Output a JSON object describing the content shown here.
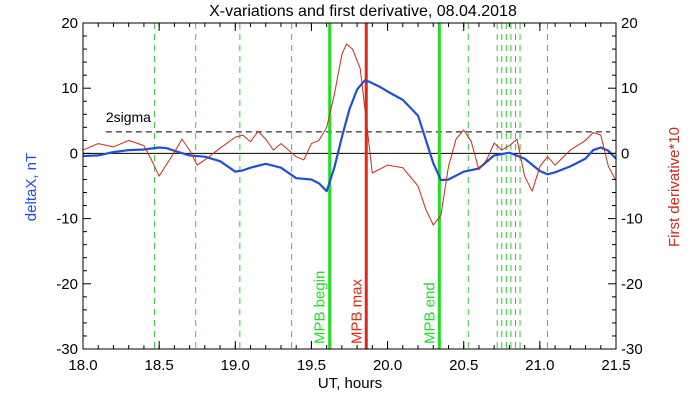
{
  "chart_data": {
    "type": "line",
    "title": "X-variations and first derivative, 08.04.2018",
    "xlabel": "UT, hours",
    "ylabel_left": "deltaX, nT",
    "ylabel_right": "First derivative*10",
    "xlim": [
      18.0,
      21.5
    ],
    "ylim": [
      -30,
      20
    ],
    "x_ticks": [
      "18.0",
      "18.5",
      "19.0",
      "19.5",
      "20.0",
      "20.5",
      "21.0",
      "21.5"
    ],
    "y_ticks_left": [
      "20",
      "10",
      "0",
      "-10",
      "-20",
      "-30"
    ],
    "y_ticks_right": [
      "20",
      "10",
      "0",
      "-10",
      "-20",
      "-30"
    ],
    "threshold": {
      "label": "2sigma",
      "value": 3.3
    },
    "zero_line": 0,
    "series": [
      {
        "color": "#1f4fd6",
        "axis": "left",
        "x": [
          18.0,
          18.1,
          18.2,
          18.3,
          18.4,
          18.5,
          18.55,
          18.6,
          18.7,
          18.8,
          18.9,
          19.0,
          19.05,
          19.1,
          19.2,
          19.3,
          19.4,
          19.5,
          19.55,
          19.6,
          19.65,
          19.7,
          19.75,
          19.8,
          19.85,
          19.88,
          19.95,
          20.0,
          20.1,
          20.2,
          20.25,
          20.3,
          20.35,
          20.4,
          20.5,
          20.6,
          20.7,
          20.8,
          20.9,
          21.0,
          21.05,
          21.1,
          21.2,
          21.3,
          21.35,
          21.4,
          21.45,
          21.5
        ],
        "y": [
          -0.4,
          -0.3,
          0.2,
          0.5,
          0.6,
          0.9,
          0.8,
          0.4,
          -0.3,
          -0.5,
          -1.2,
          -2.8,
          -2.6,
          -2.2,
          -1.6,
          -2.2,
          -3.8,
          -4.0,
          -4.6,
          -5.8,
          -2.2,
          2.5,
          6.8,
          9.8,
          11.2,
          11.0,
          10.2,
          9.5,
          8.2,
          5.8,
          2.2,
          -1.5,
          -4.1,
          -4.0,
          -2.8,
          -2.3,
          -0.3,
          0.1,
          -0.8,
          -2.7,
          -3.2,
          -2.9,
          -2.0,
          -0.8,
          0.5,
          0.9,
          0.4,
          -0.8
        ]
      },
      {
        "color": "#cc2a18",
        "axis": "right",
        "x": [
          18.0,
          18.1,
          18.2,
          18.3,
          18.4,
          18.45,
          18.5,
          18.6,
          18.65,
          18.7,
          18.75,
          18.8,
          18.9,
          19.0,
          19.05,
          19.1,
          19.15,
          19.2,
          19.25,
          19.3,
          19.4,
          19.45,
          19.5,
          19.55,
          19.6,
          19.65,
          19.7,
          19.73,
          19.77,
          19.82,
          19.86,
          19.9,
          20.0,
          20.1,
          20.2,
          20.25,
          20.3,
          20.35,
          20.4,
          20.45,
          20.5,
          20.55,
          20.6,
          20.65,
          20.7,
          20.75,
          20.8,
          20.85,
          20.9,
          20.95,
          21.0,
          21.05,
          21.1,
          21.2,
          21.3,
          21.35,
          21.4,
          21.45,
          21.5
        ],
        "y": [
          0.5,
          1.5,
          1.0,
          2.0,
          1.2,
          -1.0,
          -3.5,
          0.2,
          2.2,
          0.5,
          -1.8,
          -1.0,
          0.8,
          2.5,
          2.8,
          1.8,
          3.4,
          2.2,
          0.5,
          1.5,
          -0.5,
          -1.0,
          1.5,
          2.0,
          4.0,
          9.0,
          15.2,
          16.8,
          16.0,
          13.0,
          5.0,
          -3.0,
          -1.8,
          -2.2,
          -5.0,
          -8.5,
          -11.0,
          -9.5,
          -2.0,
          2.2,
          3.6,
          1.8,
          -2.5,
          -1.0,
          1.6,
          0.5,
          1.2,
          2.2,
          -3.5,
          -5.8,
          -2.0,
          -0.5,
          -1.8,
          0.5,
          2.0,
          3.2,
          2.8,
          -2.0,
          -4.2
        ]
      }
    ],
    "event_lines": [
      {
        "x": 19.62,
        "color": "#22dd22",
        "label": "MPB begin"
      },
      {
        "x": 19.86,
        "color": "#dd2a18",
        "label": "MPB max"
      },
      {
        "x": 20.34,
        "color": "#22dd22",
        "label": "MPB end"
      }
    ],
    "dashed_lines": [
      18.47,
      18.74,
      19.03,
      19.37,
      20.53,
      20.72,
      20.75,
      20.78,
      20.81,
      20.84,
      20.87,
      21.05
    ]
  }
}
